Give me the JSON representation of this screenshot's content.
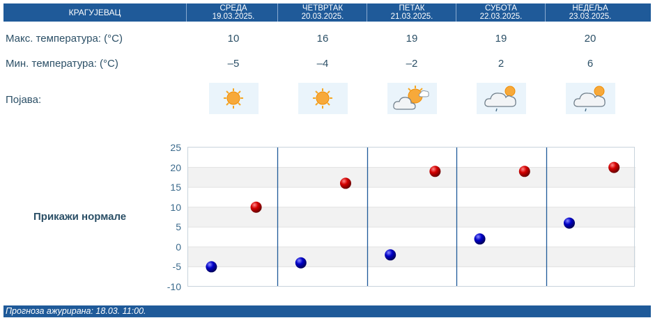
{
  "header": {
    "city": "КРАГУЈЕВАЦ",
    "days": [
      {
        "name": "СРЕДА",
        "date": "19.03.2025."
      },
      {
        "name": "ЧЕТВРТАК",
        "date": "20.03.2025."
      },
      {
        "name": "ПЕТАК",
        "date": "21.03.2025."
      },
      {
        "name": "СУБОТА",
        "date": "22.03.2025."
      },
      {
        "name": "НЕДЕЉА",
        "date": "23.03.2025."
      }
    ]
  },
  "rows": {
    "max_label": "Макс. температура: (°C)",
    "min_label": "Мин. температура: (°C)",
    "phenomenon_label": "Појава:"
  },
  "forecast": {
    "max": [
      "10",
      "16",
      "19",
      "19",
      "20"
    ],
    "min": [
      "–5",
      "–4",
      "–2",
      "2",
      "6"
    ],
    "icons": [
      "sunny-icon",
      "sunny-icon",
      "partly-cloudy-icon",
      "cloudy-rain-icon",
      "cloudy-rain-icon"
    ]
  },
  "colors": {
    "header_bg": "#1f5a99",
    "max_marker": "#cc0000",
    "min_marker": "#0000aa"
  },
  "normals_button": "Прикажи нормале",
  "chart_data": {
    "type": "scatter",
    "title": "",
    "xlabel": "",
    "ylabel": "",
    "categories": [
      "19.03.2025.",
      "20.03.2025.",
      "21.03.2025.",
      "22.03.2025.",
      "23.03.2025."
    ],
    "ylim": [
      -10,
      25
    ],
    "yticks": [
      "25",
      "20",
      "15",
      "10",
      "5",
      "0",
      "-5",
      "-10"
    ],
    "series": [
      {
        "name": "Мин. температура",
        "values": [
          -5,
          -4,
          -2,
          2,
          6
        ]
      },
      {
        "name": "Макс. температура",
        "values": [
          10,
          16,
          19,
          19,
          20
        ]
      }
    ]
  },
  "footer": {
    "text": "Прогноза ажурирана:  18.03. 11:00."
  }
}
